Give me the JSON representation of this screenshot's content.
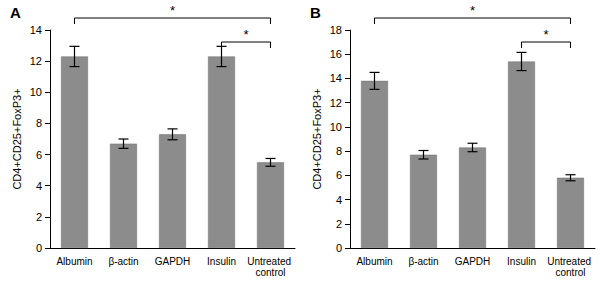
{
  "chart_data": [
    {
      "type": "bar",
      "title": "A",
      "categories": [
        "Albumin",
        "β-actin",
        "GAPDH",
        "Insulin",
        "Untreated control"
      ],
      "values": [
        12.3,
        6.7,
        7.3,
        12.3,
        5.5
      ],
      "errors": [
        0.65,
        0.3,
        0.35,
        0.65,
        0.25
      ],
      "y_label": "CD4+CD25+FoxP3+",
      "ylim": [
        0,
        14
      ],
      "yticks": [
        0,
        2,
        4,
        6,
        8,
        10,
        12,
        14
      ],
      "color": "#8c8c8c",
      "grid": false,
      "significance": [
        {
          "from": "Albumin",
          "to": "Untreated control",
          "label": "*"
        },
        {
          "from": "Insulin",
          "to": "Untreated control",
          "label": "*"
        }
      ]
    },
    {
      "type": "bar",
      "title": "B",
      "categories": [
        "Albumin",
        "β-actin",
        "GAPDH",
        "Insulin",
        "Untreated control"
      ],
      "values": [
        13.8,
        7.7,
        8.3,
        15.4,
        5.8
      ],
      "errors": [
        0.7,
        0.35,
        0.35,
        0.75,
        0.25
      ],
      "y_label": "CD4+CD25+FoxP3+",
      "ylim": [
        0,
        18
      ],
      "yticks": [
        0,
        2,
        4,
        6,
        8,
        10,
        12,
        14,
        16,
        18
      ],
      "color": "#8c8c8c",
      "grid": false,
      "significance": [
        {
          "from": "Albumin",
          "to": "Untreated control",
          "label": "*"
        },
        {
          "from": "Insulin",
          "to": "Untreated control",
          "label": "*"
        }
      ]
    }
  ]
}
